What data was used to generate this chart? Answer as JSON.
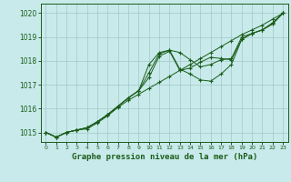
{
  "title": "Graphe pression niveau de la mer (hPa)",
  "background_color": "#c8eaea",
  "grid_color": "#a0c8c8",
  "line_color": "#1a5c1a",
  "xlim": [
    -0.5,
    23.5
  ],
  "ylim": [
    1014.6,
    1020.4
  ],
  "yticks": [
    1015,
    1016,
    1017,
    1018,
    1019,
    1020
  ],
  "xticks": [
    0,
    1,
    2,
    3,
    4,
    5,
    6,
    7,
    8,
    9,
    10,
    11,
    12,
    13,
    14,
    15,
    16,
    17,
    18,
    19,
    20,
    21,
    22,
    23
  ],
  "series": [
    [
      1015.0,
      1014.8,
      1015.0,
      1015.1,
      1015.15,
      1015.4,
      1015.7,
      1016.05,
      1016.35,
      1016.6,
      1016.85,
      1017.1,
      1017.35,
      1017.6,
      1017.85,
      1018.1,
      1018.35,
      1018.6,
      1018.85,
      1019.1,
      1019.3,
      1019.5,
      1019.75,
      1020.0
    ],
    [
      1015.0,
      1014.8,
      1015.0,
      1015.1,
      1015.2,
      1015.45,
      1015.75,
      1016.1,
      1016.45,
      1016.75,
      1017.85,
      1018.35,
      1018.45,
      1018.35,
      1018.05,
      1017.75,
      1017.85,
      1018.05,
      1018.1,
      1019.0,
      1019.15,
      1019.3,
      1019.6,
      1020.0
    ],
    [
      1015.0,
      1014.8,
      1015.0,
      1015.1,
      1015.2,
      1015.45,
      1015.75,
      1016.1,
      1016.45,
      1016.75,
      1017.5,
      1018.3,
      1018.45,
      1017.65,
      1017.45,
      1017.2,
      1017.15,
      1017.45,
      1017.85,
      1018.9,
      1019.15,
      1019.3,
      1019.55,
      1020.0
    ],
    [
      1015.0,
      1014.8,
      1015.0,
      1015.1,
      1015.2,
      1015.45,
      1015.75,
      1016.1,
      1016.45,
      1016.75,
      1017.3,
      1018.2,
      1018.4,
      1017.6,
      1017.7,
      1017.95,
      1018.15,
      1018.1,
      1018.05,
      1018.9,
      1019.15,
      1019.3,
      1019.55,
      1020.0
    ]
  ]
}
